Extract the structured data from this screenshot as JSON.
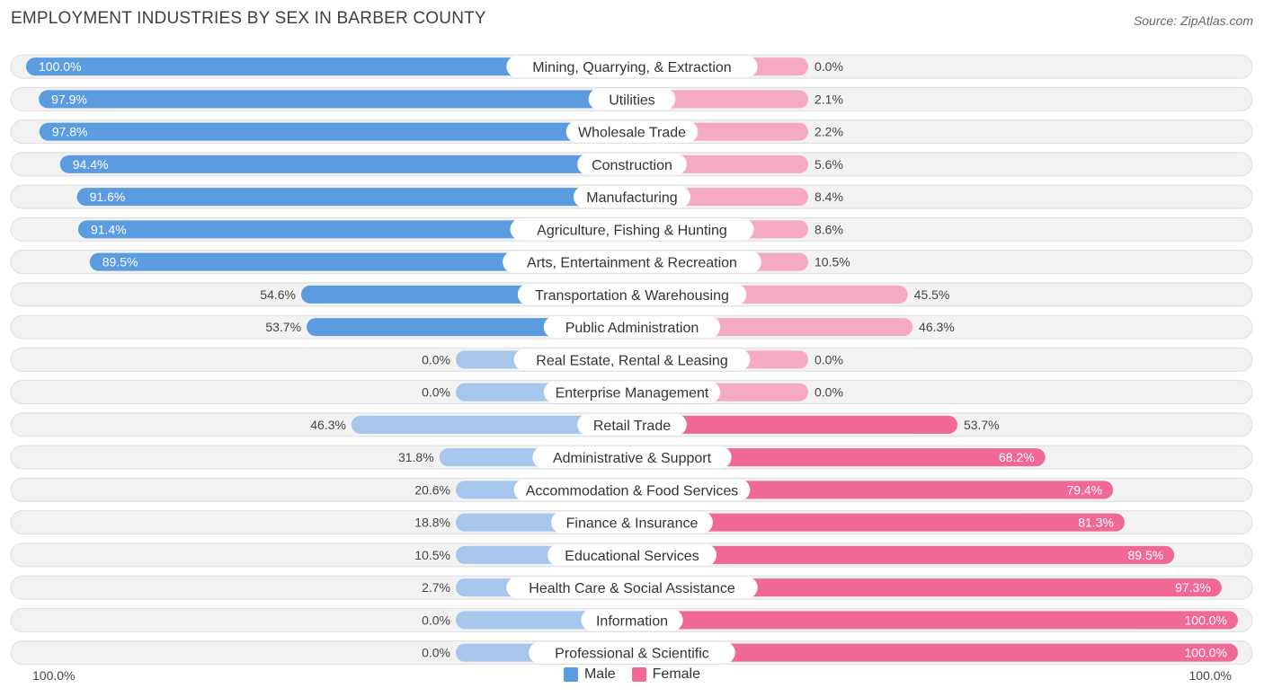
{
  "title": "EMPLOYMENT INDUSTRIES BY SEX IN BARBER COUNTY",
  "source": "Source: ZipAtlas.com",
  "colors": {
    "male_strong": "#5b9be0",
    "male_light": "#a7c6ec",
    "female_strong": "#f06896",
    "female_light": "#f5a9c2",
    "row_bg": "#f2f2f2",
    "row_border": "#dedede"
  },
  "legend": {
    "male": "Male",
    "female": "Female"
  },
  "axis": {
    "left_label": "100.0%",
    "right_label": "100.0%"
  },
  "chart_data": {
    "type": "bar",
    "orientation": "horizontal-diverging",
    "title": "EMPLOYMENT INDUSTRIES BY SEX IN BARBER COUNTY",
    "xlim": [
      -100,
      100
    ],
    "categories": [
      "Mining, Quarrying, & Extraction",
      "Utilities",
      "Wholesale Trade",
      "Construction",
      "Manufacturing",
      "Agriculture, Fishing & Hunting",
      "Arts, Entertainment & Recreation",
      "Transportation & Warehousing",
      "Public Administration",
      "Real Estate, Rental & Leasing",
      "Enterprise Management",
      "Retail Trade",
      "Administrative & Support",
      "Accommodation & Food Services",
      "Finance & Insurance",
      "Educational Services",
      "Health Care & Social Assistance",
      "Information",
      "Professional & Scientific"
    ],
    "series": [
      {
        "name": "Male",
        "values": [
          100.0,
          97.9,
          97.8,
          94.4,
          91.6,
          91.4,
          89.5,
          54.6,
          53.7,
          0.0,
          0.0,
          46.3,
          31.8,
          20.6,
          18.8,
          10.5,
          2.7,
          0.0,
          0.0
        ]
      },
      {
        "name": "Female",
        "values": [
          0.0,
          2.1,
          2.2,
          5.6,
          8.4,
          8.6,
          10.5,
          45.5,
          46.3,
          0.0,
          0.0,
          53.7,
          68.2,
          79.4,
          81.3,
          89.5,
          97.3,
          100.0,
          100.0
        ]
      }
    ],
    "male_labels": [
      "100.0%",
      "97.9%",
      "97.8%",
      "94.4%",
      "91.6%",
      "91.4%",
      "89.5%",
      "54.6%",
      "53.7%",
      "0.0%",
      "0.0%",
      "46.3%",
      "31.8%",
      "20.6%",
      "18.8%",
      "10.5%",
      "2.7%",
      "0.0%",
      "0.0%"
    ],
    "female_labels": [
      "0.0%",
      "2.1%",
      "2.2%",
      "5.6%",
      "8.4%",
      "8.6%",
      "10.5%",
      "45.5%",
      "46.3%",
      "0.0%",
      "0.0%",
      "53.7%",
      "68.2%",
      "79.4%",
      "81.3%",
      "89.5%",
      "97.3%",
      "100.0%",
      "100.0%"
    ],
    "legend": [
      "Male",
      "Female"
    ],
    "legend_position": "bottom-center"
  }
}
